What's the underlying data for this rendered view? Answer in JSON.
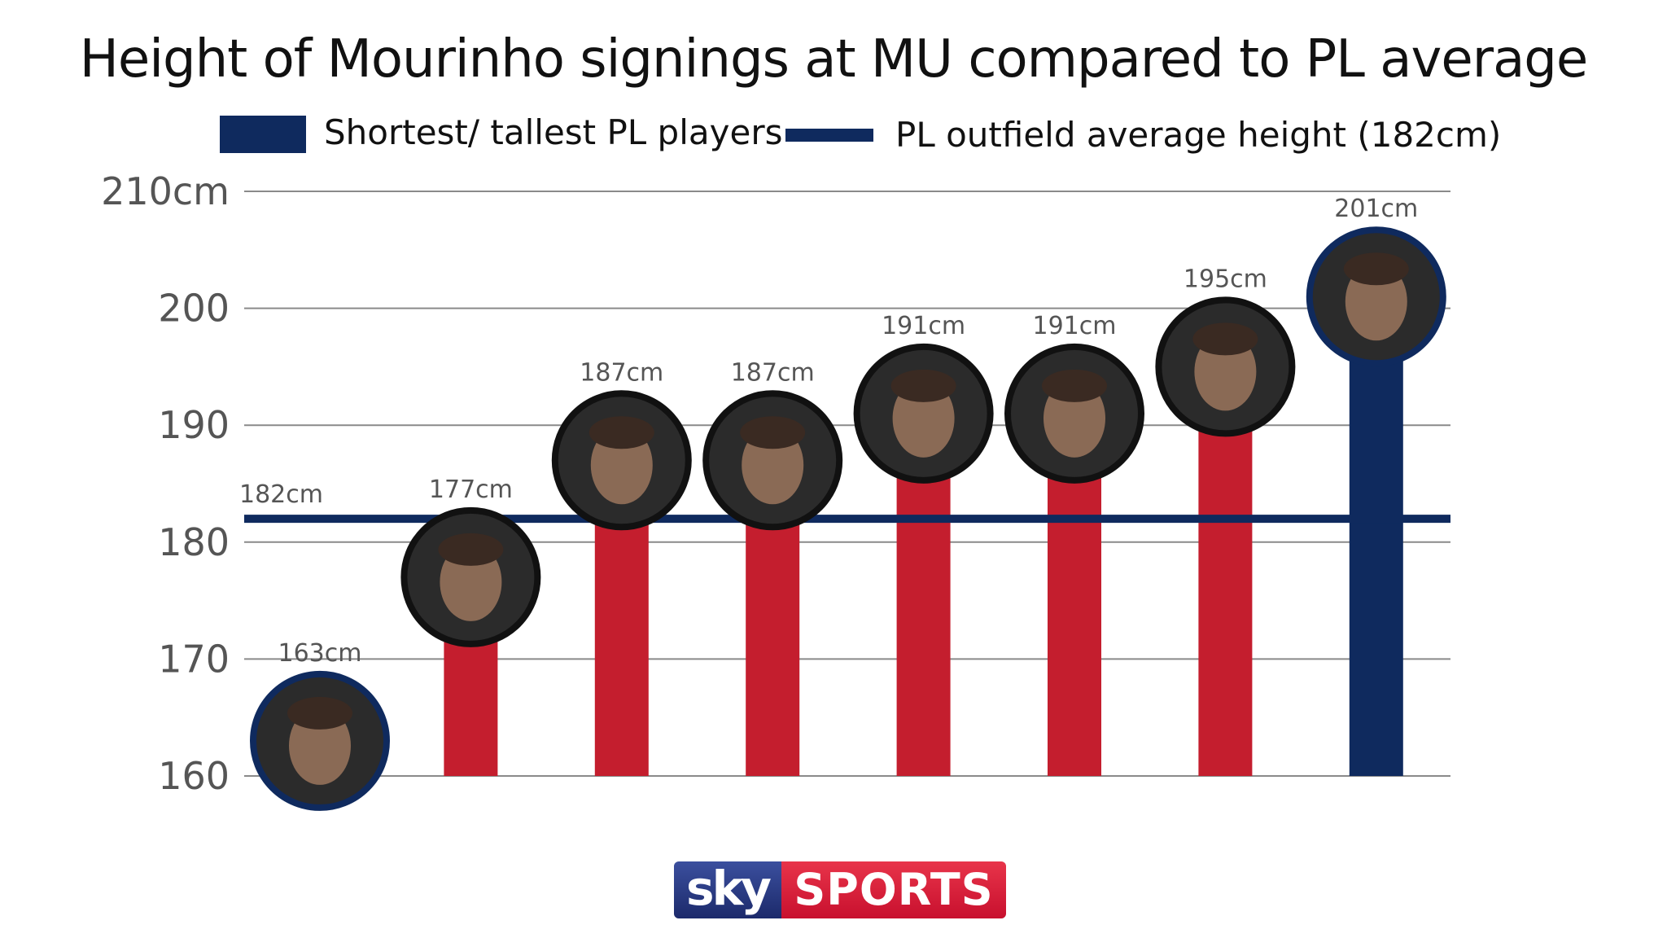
{
  "chart_data": {
    "type": "bar",
    "title": "Height of Mourinho signings at MU compared to PL average",
    "legend": [
      {
        "label": "Shortest/ tallest PL players",
        "color": "#0f2a5e",
        "kind": "box"
      },
      {
        "label": "PL outfield average height (182cm)",
        "color": "#0f2a5e",
        "kind": "line"
      }
    ],
    "ylim": [
      160,
      210
    ],
    "y_ticks": [
      {
        "value": 210,
        "label": "210cm"
      },
      {
        "value": 200,
        "label": "200"
      },
      {
        "value": 190,
        "label": "190"
      },
      {
        "value": 180,
        "label": "180"
      },
      {
        "value": 170,
        "label": "170"
      },
      {
        "value": 160,
        "label": "160"
      }
    ],
    "grid": true,
    "reference_line": {
      "value": 182,
      "label": "182cm",
      "color": "#0f2a5e"
    },
    "bars": [
      {
        "value": 163,
        "label": "163cm",
        "color": "#0f2a5e",
        "group": "shortest"
      },
      {
        "value": 177,
        "label": "177cm",
        "color": "#c41e2e",
        "group": "signing"
      },
      {
        "value": 187,
        "label": "187cm",
        "color": "#c41e2e",
        "group": "signing"
      },
      {
        "value": 187,
        "label": "187cm",
        "color": "#c41e2e",
        "group": "signing"
      },
      {
        "value": 191,
        "label": "191cm",
        "color": "#c41e2e",
        "group": "signing"
      },
      {
        "value": 191,
        "label": "191cm",
        "color": "#c41e2e",
        "group": "signing"
      },
      {
        "value": 195,
        "label": "195cm",
        "color": "#c41e2e",
        "group": "signing"
      },
      {
        "value": 201,
        "label": "201cm",
        "color": "#0f2a5e",
        "group": "tallest"
      }
    ]
  },
  "logo": {
    "sky": "sky",
    "sports": "SPORTS"
  }
}
